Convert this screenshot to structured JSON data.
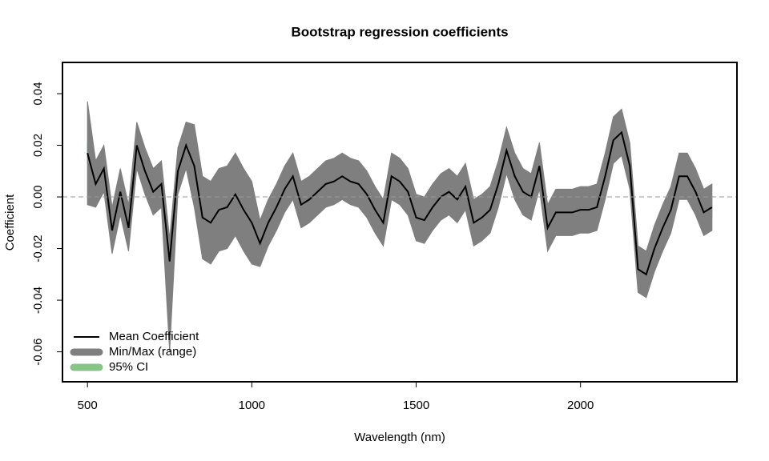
{
  "chart_data": {
    "type": "band",
    "title": "Bootstrap regression coefficients",
    "x_label": "Wavelength (nm)",
    "y_label": "Coefficient",
    "xlim": [
      424,
      2476
    ],
    "ylim": [
      -0.0716,
      0.0521
    ],
    "xticks": [
      500,
      1000,
      1500,
      2000
    ],
    "yticks": [
      -0.06,
      -0.04,
      -0.02,
      {
        "value": 0,
        "label": "0.00"
      },
      0.02,
      0.04
    ],
    "reference_line": 0,
    "legend": "bottom-left",
    "x": [
      500,
      525,
      550,
      575,
      600,
      625,
      650,
      675,
      700,
      725,
      750,
      775,
      800,
      825,
      850,
      875,
      900,
      925,
      950,
      975,
      1000,
      1025,
      1050,
      1075,
      1100,
      1125,
      1150,
      1175,
      1200,
      1225,
      1250,
      1275,
      1300,
      1325,
      1350,
      1375,
      1400,
      1425,
      1450,
      1475,
      1500,
      1525,
      1550,
      1575,
      1600,
      1625,
      1650,
      1675,
      1700,
      1725,
      1750,
      1775,
      1800,
      1825,
      1850,
      1875,
      1900,
      1925,
      1950,
      1975,
      2000,
      2025,
      2050,
      2075,
      2100,
      2125,
      2150,
      2175,
      2200,
      2225,
      2250,
      2275,
      2300,
      2325,
      2350,
      2375,
      2400
    ],
    "series": [
      {
        "name": "Mean Coefficient",
        "color": "#000000",
        "values": [
          0.017,
          0.005,
          0.011,
          -0.013,
          0.002,
          -0.012,
          0.02,
          0.01,
          0.002,
          0.005,
          -0.025,
          0.01,
          0.02,
          0.012,
          -0.008,
          -0.01,
          -0.005,
          -0.004,
          0.001,
          -0.005,
          -0.01,
          -0.018,
          -0.01,
          -0.004,
          0.003,
          0.008,
          -0.003,
          -0.001,
          0.002,
          0.005,
          0.006,
          0.008,
          0.006,
          0.005,
          0.001,
          -0.005,
          -0.01,
          0.008,
          0.006,
          0.002,
          -0.008,
          -0.009,
          -0.004,
          0.0,
          0.002,
          -0.001,
          0.004,
          -0.01,
          -0.008,
          -0.005,
          0.005,
          0.018,
          0.008,
          0.002,
          0.0,
          0.012,
          -0.012,
          -0.006,
          -0.006,
          -0.006,
          -0.005,
          -0.005,
          -0.004,
          0.008,
          0.022,
          0.025,
          0.012,
          -0.028,
          -0.03,
          -0.02,
          -0.012,
          -0.005,
          0.008,
          0.008,
          0.002,
          -0.006,
          -0.004
        ]
      },
      {
        "name": "Min/Max (range)",
        "color": "#7f7f7f",
        "upper": [
          0.037,
          0.014,
          0.02,
          -0.004,
          0.011,
          -0.003,
          0.029,
          0.019,
          0.011,
          0.014,
          -0.016,
          0.019,
          0.029,
          0.028,
          0.008,
          0.006,
          0.011,
          0.012,
          0.017,
          0.011,
          0.006,
          -0.009,
          -0.001,
          0.005,
          0.012,
          0.017,
          0.006,
          0.008,
          0.011,
          0.014,
          0.015,
          0.017,
          0.015,
          0.014,
          0.01,
          0.004,
          -0.001,
          0.017,
          0.015,
          0.011,
          0.001,
          0.0,
          0.005,
          0.009,
          0.011,
          0.008,
          0.013,
          -0.001,
          0.001,
          0.004,
          0.014,
          0.027,
          0.017,
          0.011,
          0.009,
          0.021,
          -0.003,
          0.003,
          0.003,
          0.003,
          0.004,
          0.004,
          0.005,
          0.017,
          0.031,
          0.034,
          0.021,
          -0.019,
          -0.021,
          -0.011,
          -0.003,
          0.004,
          0.017,
          0.017,
          0.011,
          0.003,
          0.005
        ],
        "lower": [
          -0.003,
          -0.004,
          0.002,
          -0.022,
          -0.007,
          -0.021,
          0.011,
          0.001,
          -0.007,
          -0.004,
          -0.06,
          0.001,
          0.011,
          -0.004,
          -0.024,
          -0.026,
          -0.021,
          -0.02,
          -0.015,
          -0.021,
          -0.026,
          -0.027,
          -0.019,
          -0.013,
          -0.006,
          -0.001,
          -0.012,
          -0.01,
          -0.007,
          -0.004,
          -0.003,
          -0.001,
          -0.003,
          -0.004,
          -0.008,
          -0.014,
          -0.019,
          -0.001,
          -0.003,
          -0.007,
          -0.017,
          -0.018,
          -0.013,
          -0.009,
          -0.007,
          -0.01,
          -0.005,
          -0.019,
          -0.017,
          -0.014,
          -0.004,
          0.009,
          -0.001,
          -0.007,
          -0.009,
          0.003,
          -0.021,
          -0.015,
          -0.015,
          -0.015,
          -0.014,
          -0.014,
          -0.013,
          -0.001,
          0.013,
          0.016,
          0.003,
          -0.037,
          -0.039,
          -0.029,
          -0.021,
          -0.014,
          -0.001,
          -0.001,
          -0.007,
          -0.015,
          -0.013
        ]
      },
      {
        "name": "95% CI",
        "color": "#88c488",
        "upper": [
          0.021,
          0.009,
          0.015,
          -0.009,
          0.006,
          -0.008,
          0.024,
          0.014,
          0.006,
          0.009,
          -0.021,
          0.014,
          0.024,
          0.016,
          -0.004,
          -0.006,
          -0.001,
          0.0,
          0.005,
          -0.001,
          -0.006,
          -0.014,
          -0.006,
          0.0,
          0.007,
          0.012,
          0.001,
          0.003,
          0.006,
          0.009,
          0.01,
          0.012,
          0.01,
          0.009,
          0.005,
          -0.001,
          -0.006,
          0.012,
          0.01,
          0.006,
          -0.004,
          -0.005,
          0.0,
          0.004,
          0.006,
          0.003,
          0.008,
          -0.006,
          -0.004,
          -0.001,
          0.009,
          0.022,
          0.012,
          0.006,
          0.004,
          0.016,
          -0.008,
          -0.002,
          -0.002,
          -0.002,
          -0.001,
          -0.001,
          0.0,
          0.012,
          0.026,
          0.029,
          0.016,
          -0.024,
          -0.026,
          -0.016,
          -0.008,
          -0.001,
          0.012,
          0.012,
          0.006,
          -0.002,
          0.0
        ],
        "lower": [
          0.013,
          0.001,
          0.007,
          -0.017,
          -0.002,
          -0.016,
          0.016,
          0.006,
          -0.002,
          0.001,
          -0.029,
          0.006,
          0.016,
          0.008,
          -0.012,
          -0.014,
          -0.009,
          -0.008,
          -0.003,
          -0.009,
          -0.014,
          -0.022,
          -0.014,
          -0.008,
          -0.001,
          0.004,
          -0.007,
          -0.005,
          -0.002,
          0.001,
          0.002,
          0.004,
          0.002,
          0.001,
          -0.003,
          -0.009,
          -0.014,
          0.004,
          0.002,
          -0.002,
          -0.012,
          -0.013,
          -0.008,
          -0.004,
          -0.002,
          -0.005,
          0.0,
          -0.014,
          -0.012,
          -0.009,
          0.001,
          0.014,
          0.004,
          -0.002,
          -0.004,
          0.008,
          -0.016,
          -0.01,
          -0.01,
          -0.01,
          -0.009,
          -0.009,
          -0.008,
          0.004,
          0.018,
          0.021,
          0.008,
          -0.032,
          -0.034,
          -0.024,
          -0.016,
          -0.009,
          0.004,
          0.004,
          -0.002,
          -0.01,
          -0.008
        ]
      }
    ]
  }
}
